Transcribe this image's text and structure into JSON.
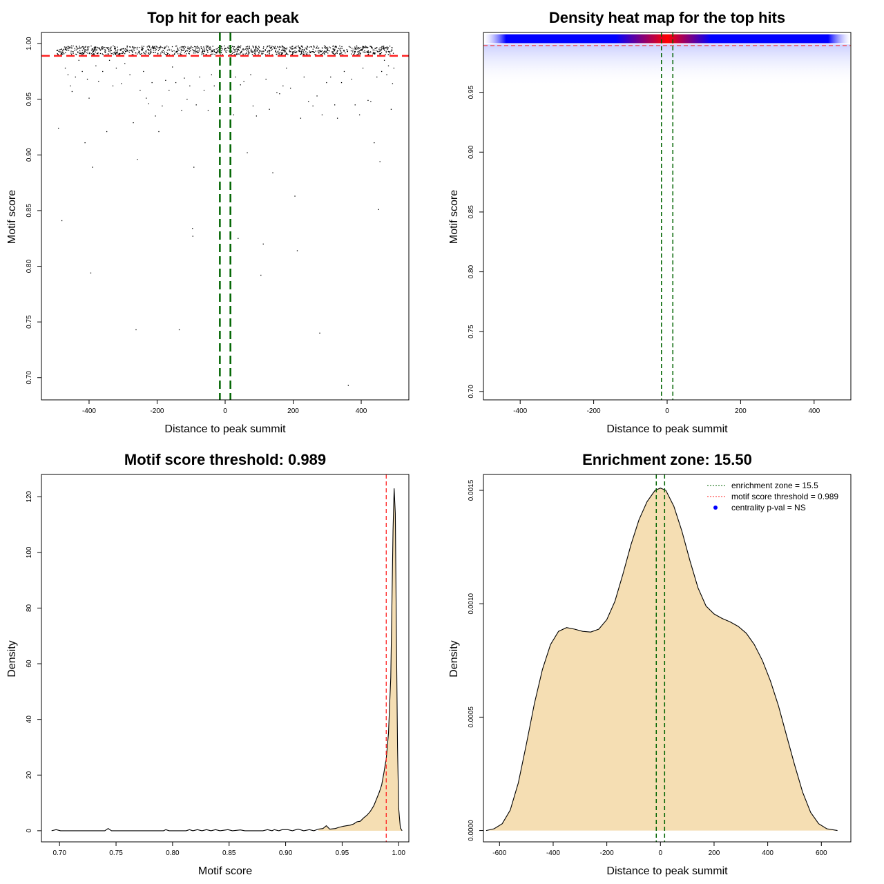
{
  "colors": {
    "threshold_line": "#ff2020",
    "zone_line": "#006400",
    "density_fill": "#f5deb3",
    "heat_low": "#ffffff",
    "heat_mid": "#0000ff",
    "heat_high": "#ff0000",
    "point": "#000000",
    "frame": "#000000",
    "legend_point": "#0000ff"
  },
  "chart_data": [
    {
      "id": "scatter",
      "type": "scatter",
      "title": "Top hit for each peak",
      "xlabel": "Distance to peak summit",
      "ylabel": "Motif score",
      "xlim": [
        -540,
        540
      ],
      "ylim": [
        0.68,
        1.01
      ],
      "xticks": [
        -400,
        -200,
        0,
        200,
        400
      ],
      "yticks": [
        0.7,
        0.75,
        0.8,
        0.85,
        0.9,
        0.95,
        1.0
      ],
      "xtick_labels": [
        "-400",
        "-200",
        "0",
        "200",
        "400"
      ],
      "ytick_labels": [
        "0.70",
        "0.75",
        "0.80",
        "0.85",
        "0.90",
        "0.95",
        "1.00"
      ],
      "threshold": 0.989,
      "zone": [
        -15.5,
        15.5
      ],
      "dense_band": {
        "x_range": [
          -495,
          495
        ],
        "y_range": [
          0.99,
          0.998
        ],
        "approx_count": 1100
      },
      "points": [
        [
          -490,
          0.924
        ],
        [
          -480,
          0.841
        ],
        [
          -470,
          0.978
        ],
        [
          -462,
          0.972
        ],
        [
          -455,
          0.962
        ],
        [
          -450,
          0.957
        ],
        [
          -440,
          0.97
        ],
        [
          -430,
          0.985
        ],
        [
          -420,
          0.975
        ],
        [
          -412,
          0.911
        ],
        [
          -405,
          0.968
        ],
        [
          -400,
          0.951
        ],
        [
          -395,
          0.794
        ],
        [
          -390,
          0.889
        ],
        [
          -380,
          0.98
        ],
        [
          -372,
          0.966
        ],
        [
          -360,
          0.975
        ],
        [
          -348,
          0.921
        ],
        [
          -340,
          0.985
        ],
        [
          -330,
          0.962
        ],
        [
          -320,
          0.978
        ],
        [
          -305,
          0.964
        ],
        [
          -295,
          0.982
        ],
        [
          -280,
          0.972
        ],
        [
          -270,
          0.929
        ],
        [
          -262,
          0.743
        ],
        [
          -258,
          0.896
        ],
        [
          -250,
          0.958
        ],
        [
          -240,
          0.975
        ],
        [
          -232,
          0.951
        ],
        [
          -225,
          0.946
        ],
        [
          -215,
          0.965
        ],
        [
          -205,
          0.935
        ],
        [
          -195,
          0.921
        ],
        [
          -185,
          0.944
        ],
        [
          -175,
          0.967
        ],
        [
          -165,
          0.958
        ],
        [
          -155,
          0.979
        ],
        [
          -145,
          0.965
        ],
        [
          -135,
          0.743
        ],
        [
          -128,
          0.94
        ],
        [
          -120,
          0.969
        ],
        [
          -112,
          0.95
        ],
        [
          -104,
          0.962
        ],
        [
          -96,
          0.834
        ],
        [
          -95,
          0.827
        ],
        [
          -92,
          0.889
        ],
        [
          -85,
          0.945
        ],
        [
          -75,
          0.97
        ],
        [
          -62,
          0.958
        ],
        [
          -50,
          0.94
        ],
        [
          -40,
          0.972
        ],
        [
          -32,
          0.962
        ],
        [
          25,
          0.936
        ],
        [
          30,
          0.97
        ],
        [
          38,
          0.825
        ],
        [
          45,
          0.963
        ],
        [
          55,
          0.966
        ],
        [
          65,
          0.902
        ],
        [
          75,
          0.972
        ],
        [
          82,
          0.944
        ],
        [
          92,
          0.935
        ],
        [
          105,
          0.792
        ],
        [
          112,
          0.82
        ],
        [
          120,
          0.968
        ],
        [
          130,
          0.941
        ],
        [
          140,
          0.884
        ],
        [
          152,
          0.956
        ],
        [
          160,
          0.955
        ],
        [
          170,
          0.962
        ],
        [
          180,
          0.978
        ],
        [
          192,
          0.96
        ],
        [
          205,
          0.863
        ],
        [
          212,
          0.814
        ],
        [
          222,
          0.933
        ],
        [
          232,
          0.97
        ],
        [
          245,
          0.948
        ],
        [
          258,
          0.944
        ],
        [
          270,
          0.953
        ],
        [
          278,
          0.74
        ],
        [
          285,
          0.936
        ],
        [
          298,
          0.965
        ],
        [
          310,
          0.97
        ],
        [
          322,
          0.945
        ],
        [
          330,
          0.933
        ],
        [
          342,
          0.965
        ],
        [
          350,
          0.975
        ],
        [
          362,
          0.693
        ],
        [
          372,
          0.968
        ],
        [
          382,
          0.945
        ],
        [
          395,
          0.936
        ],
        [
          405,
          0.978
        ],
        [
          420,
          0.949
        ],
        [
          428,
          0.948
        ],
        [
          438,
          0.911
        ],
        [
          446,
          0.97
        ],
        [
          451,
          0.851
        ],
        [
          455,
          0.894
        ],
        [
          460,
          0.975
        ],
        [
          468,
          0.985
        ],
        [
          475,
          0.972
        ],
        [
          480,
          0.98
        ],
        [
          488,
          0.941
        ],
        [
          492,
          0.964
        ],
        [
          496,
          0.978
        ]
      ]
    },
    {
      "id": "heatmap",
      "type": "heatmap",
      "title": "Density heat map for the top hits",
      "xlabel": "Distance to peak summit",
      "ylabel": "Motif score",
      "xlim": [
        -500,
        500
      ],
      "ylim": [
        0.693,
        1.0
      ],
      "xticks": [
        -400,
        -200,
        0,
        200,
        400
      ],
      "yticks": [
        0.7,
        0.75,
        0.8,
        0.85,
        0.9,
        0.95
      ],
      "xtick_labels": [
        "-400",
        "-200",
        "0",
        "200",
        "400"
      ],
      "ytick_labels": [
        "0.70",
        "0.75",
        "0.80",
        "0.85",
        "0.90",
        "0.95"
      ],
      "threshold": 0.989,
      "zone": [
        -15.5,
        15.5
      ],
      "hot_band": {
        "y_center": 0.995,
        "x_peak": 0,
        "x_range": [
          -500,
          500
        ]
      }
    },
    {
      "id": "score-density",
      "type": "area",
      "title": "Motif score threshold: 0.989",
      "xlabel": "Motif score",
      "ylabel": "Density",
      "xlim": [
        0.684,
        1.009
      ],
      "ylim": [
        -4,
        128
      ],
      "xticks": [
        0.7,
        0.75,
        0.8,
        0.85,
        0.9,
        0.95,
        1.0
      ],
      "yticks": [
        0,
        20,
        40,
        60,
        80,
        100,
        120
      ],
      "xtick_labels": [
        "0.70",
        "0.75",
        "0.80",
        "0.85",
        "0.90",
        "0.95",
        "1.00"
      ],
      "ytick_labels": [
        "0",
        "20",
        "40",
        "60",
        "80",
        "100",
        "120"
      ],
      "threshold": 0.989,
      "curve": [
        [
          0.693,
          0
        ],
        [
          0.697,
          0.4
        ],
        [
          0.701,
          0
        ],
        [
          0.74,
          0
        ],
        [
          0.743,
          0.8
        ],
        [
          0.746,
          0
        ],
        [
          0.792,
          0
        ],
        [
          0.794,
          0.4
        ],
        [
          0.797,
          0
        ],
        [
          0.812,
          0
        ],
        [
          0.815,
          0.4
        ],
        [
          0.818,
          0
        ],
        [
          0.822,
          0.4
        ],
        [
          0.826,
          0
        ],
        [
          0.83,
          0.4
        ],
        [
          0.834,
          0
        ],
        [
          0.838,
          0.4
        ],
        [
          0.842,
          0
        ],
        [
          0.849,
          0.4
        ],
        [
          0.853,
          0
        ],
        [
          0.86,
          0.3
        ],
        [
          0.864,
          0
        ],
        [
          0.88,
          0
        ],
        [
          0.884,
          0.4
        ],
        [
          0.888,
          0
        ],
        [
          0.89,
          0.4
        ],
        [
          0.894,
          0
        ],
        [
          0.897,
          0.4
        ],
        [
          0.902,
          0.4
        ],
        [
          0.906,
          0
        ],
        [
          0.911,
          0.6
        ],
        [
          0.916,
          0
        ],
        [
          0.921,
          0.4
        ],
        [
          0.925,
          0
        ],
        [
          0.929,
          0.6
        ],
        [
          0.933,
          0.8
        ],
        [
          0.936,
          1.8
        ],
        [
          0.939,
          0.6
        ],
        [
          0.944,
          0.8
        ],
        [
          0.947,
          1.2
        ],
        [
          0.951,
          1.6
        ],
        [
          0.954,
          1.8
        ],
        [
          0.957,
          2.0
        ],
        [
          0.96,
          2.4
        ],
        [
          0.963,
          3.2
        ],
        [
          0.966,
          3.4
        ],
        [
          0.969,
          4.6
        ],
        [
          0.972,
          5.6
        ],
        [
          0.975,
          7.0
        ],
        [
          0.978,
          9.0
        ],
        [
          0.981,
          12.0
        ],
        [
          0.983,
          14.0
        ],
        [
          0.985,
          16.5
        ],
        [
          0.987,
          21.0
        ],
        [
          0.989,
          26.0
        ],
        [
          0.991,
          35.0
        ],
        [
          0.993,
          55.0
        ],
        [
          0.994,
          80.0
        ],
        [
          0.995,
          108.0
        ],
        [
          0.996,
          123.0
        ],
        [
          0.997,
          114.0
        ],
        [
          0.998,
          70.0
        ],
        [
          0.999,
          30.0
        ],
        [
          1.0,
          8.0
        ],
        [
          1.0015,
          1.0
        ],
        [
          1.003,
          0
        ]
      ]
    },
    {
      "id": "distance-density",
      "type": "area",
      "title": "Enrichment zone: 15.50",
      "xlabel": "Distance to peak summit",
      "ylabel": "Density",
      "xlim": [
        -660,
        710
      ],
      "ylim": [
        -5e-05,
        0.00157
      ],
      "xticks": [
        -600,
        -400,
        -200,
        0,
        200,
        400,
        600
      ],
      "yticks": [
        0.0,
        0.0005,
        0.001,
        0.0015
      ],
      "xtick_labels": [
        "-600",
        "-400",
        "-200",
        "0",
        "200",
        "400",
        "600"
      ],
      "ytick_labels": [
        "0.0000",
        "0.0005",
        "0.0010",
        "0.0015"
      ],
      "zone": [
        -15.5,
        15.5
      ],
      "curve": [
        [
          -650,
          0.0
        ],
        [
          -620,
          8e-06
        ],
        [
          -590,
          3e-05
        ],
        [
          -560,
          9e-05
        ],
        [
          -530,
          0.00021
        ],
        [
          -500,
          0.00038
        ],
        [
          -470,
          0.00056
        ],
        [
          -440,
          0.00071
        ],
        [
          -410,
          0.00082
        ],
        [
          -380,
          0.000878
        ],
        [
          -350,
          0.000895
        ],
        [
          -320,
          0.000888
        ],
        [
          -290,
          0.000878
        ],
        [
          -260,
          0.000875
        ],
        [
          -230,
          0.000888
        ],
        [
          -200,
          0.00093
        ],
        [
          -170,
          0.00101
        ],
        [
          -140,
          0.00113
        ],
        [
          -110,
          0.00126
        ],
        [
          -80,
          0.00137
        ],
        [
          -50,
          0.00145
        ],
        [
          -20,
          0.0015
        ],
        [
          0,
          0.00151
        ],
        [
          20,
          0.0015
        ],
        [
          50,
          0.00143
        ],
        [
          80,
          0.00132
        ],
        [
          110,
          0.00119
        ],
        [
          140,
          0.00107
        ],
        [
          170,
          0.00099
        ],
        [
          200,
          0.000955
        ],
        [
          230,
          0.000935
        ],
        [
          260,
          0.00092
        ],
        [
          290,
          0.0009
        ],
        [
          320,
          0.00087
        ],
        [
          350,
          0.00082
        ],
        [
          380,
          0.00075
        ],
        [
          410,
          0.00066
        ],
        [
          440,
          0.00055
        ],
        [
          470,
          0.00042
        ],
        [
          500,
          0.00029
        ],
        [
          530,
          0.00017
        ],
        [
          560,
          8e-05
        ],
        [
          590,
          3e-05
        ],
        [
          620,
          8e-06
        ],
        [
          660,
          0.0
        ]
      ],
      "legend": [
        {
          "label": "enrichment zone = 15.5",
          "kind": "dotted-line",
          "color": "#006400"
        },
        {
          "label": "motif score threshold = 0.989",
          "kind": "dotted-line",
          "color": "#ff2020"
        },
        {
          "label": "centrality p-val = NS",
          "kind": "point",
          "color": "#0000ff"
        }
      ]
    }
  ]
}
